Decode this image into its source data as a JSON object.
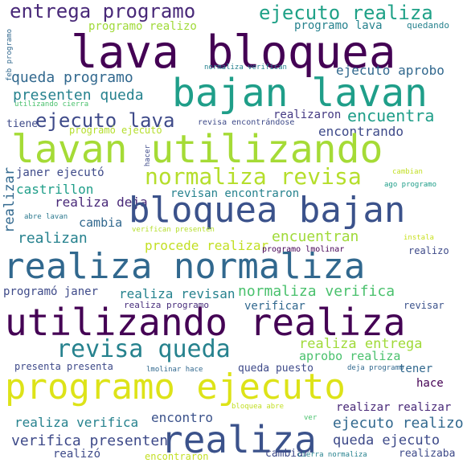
{
  "words": [
    {
      "text": "entrega programo",
      "color": "#482878",
      "vertical": false
    },
    {
      "text": "ejecuto realiza",
      "color": "#1fa187",
      "vertical": false
    },
    {
      "text": "programo realizo",
      "color": "#a0da39",
      "vertical": false
    },
    {
      "text": "programo lava",
      "color": "#26828e",
      "vertical": false
    },
    {
      "text": "quedando",
      "color": "#26828e",
      "vertical": false
    },
    {
      "text": "lava bloquea",
      "color": "#440154",
      "vertical": false
    },
    {
      "text": "feb programo",
      "color": "#31688e",
      "vertical": true
    },
    {
      "text": "queda programo",
      "color": "#31688e",
      "vertical": false
    },
    {
      "text": "normaliza verifican",
      "color": "#26828e",
      "vertical": false
    },
    {
      "text": "ejecuto aprobo",
      "color": "#31688e",
      "vertical": false
    },
    {
      "text": "bajan lavan",
      "color": "#1f9e89",
      "vertical": false
    },
    {
      "text": "presenten queda",
      "color": "#26828e",
      "vertical": false
    },
    {
      "text": "utilizando cierra",
      "color": "#4ac16d",
      "vertical": false
    },
    {
      "text": "realizaron",
      "color": "#443983",
      "vertical": false
    },
    {
      "text": "ejecuto lava",
      "color": "#3e4a89",
      "vertical": false
    },
    {
      "text": "encuentra",
      "color": "#1f9e89",
      "vertical": false
    },
    {
      "text": "tiene",
      "color": "#3e4a89",
      "vertical": false
    },
    {
      "text": "revisa encontrándose",
      "color": "#3e4a89",
      "vertical": false
    },
    {
      "text": "encontrando",
      "color": "#3e4a89",
      "vertical": false
    },
    {
      "text": "programó ejecutó",
      "color": "#b5de2b",
      "vertical": false
    },
    {
      "text": "lavan utilizando",
      "color": "#a5db36",
      "vertical": false
    },
    {
      "text": "hacer",
      "color": "#3e4a89",
      "vertical": true
    },
    {
      "text": "realizar",
      "color": "#31688e",
      "vertical": true
    },
    {
      "text": "janer ejecutó",
      "color": "#3e4a89",
      "vertical": false
    },
    {
      "text": "normaliza revisa",
      "color": "#b5de2b",
      "vertical": false
    },
    {
      "text": "cambian",
      "color": "#c2df23",
      "vertical": false
    },
    {
      "text": "castrillon",
      "color": "#1f9e89",
      "vertical": false
    },
    {
      "text": "revisan encontraron",
      "color": "#26828e",
      "vertical": false
    },
    {
      "text": "ago programo",
      "color": "#1f9e89",
      "vertical": false
    },
    {
      "text": "realiza deja",
      "color": "#482878",
      "vertical": false
    },
    {
      "text": "bloquea bajan",
      "color": "#3b528b",
      "vertical": false
    },
    {
      "text": "abre lavan",
      "color": "#2a788e",
      "vertical": false
    },
    {
      "text": "cambia",
      "color": "#31688e",
      "vertical": false
    },
    {
      "text": "realizan",
      "color": "#26828e",
      "vertical": false
    },
    {
      "text": "verifican presenten",
      "color": "#b5de2b",
      "vertical": false
    },
    {
      "text": "encuentran",
      "color": "#a0da39",
      "vertical": false
    },
    {
      "text": "instala",
      "color": "#c8e020",
      "vertical": false
    },
    {
      "text": "procede realizar",
      "color": "#c2df23",
      "vertical": false
    },
    {
      "text": "programo lmolinar",
      "color": "#440154",
      "vertical": false
    },
    {
      "text": "realizo",
      "color": "#3e4a89",
      "vertical": false
    },
    {
      "text": "realiza normaliza",
      "color": "#31688e",
      "vertical": false
    },
    {
      "text": "programó janer",
      "color": "#3e4a89",
      "vertical": false
    },
    {
      "text": "realiza revisan",
      "color": "#26828e",
      "vertical": false
    },
    {
      "text": "normaliza verifica",
      "color": "#4ac16d",
      "vertical": false
    },
    {
      "text": "realiza programo",
      "color": "#472d7b",
      "vertical": false
    },
    {
      "text": "verificar",
      "color": "#31688e",
      "vertical": false
    },
    {
      "text": "revisar",
      "color": "#3b528b",
      "vertical": false
    },
    {
      "text": "utilizando realiza",
      "color": "#440154",
      "vertical": false
    },
    {
      "text": "revisa queda",
      "color": "#26828e",
      "vertical": false
    },
    {
      "text": "realiza entrega",
      "color": "#a0da39",
      "vertical": false
    },
    {
      "text": "aprobo realiza",
      "color": "#4ac16d",
      "vertical": false
    },
    {
      "text": "presenta presenta",
      "color": "#3e4a89",
      "vertical": false
    },
    {
      "text": "lmolinar hace",
      "color": "#31688e",
      "vertical": false
    },
    {
      "text": "queda puesto",
      "color": "#3e4a89",
      "vertical": false
    },
    {
      "text": "deja programo",
      "color": "#31688e",
      "vertical": false
    },
    {
      "text": "tener",
      "color": "#31688e",
      "vertical": false
    },
    {
      "text": "hace",
      "color": "#440154",
      "vertical": false
    },
    {
      "text": "programo ejecuto",
      "color": "#dde318",
      "vertical": false
    },
    {
      "text": "bloquea abre",
      "color": "#c2df23",
      "vertical": false
    },
    {
      "text": "realizar realizar",
      "color": "#482878",
      "vertical": false
    },
    {
      "text": "realiza verifica",
      "color": "#26828e",
      "vertical": false
    },
    {
      "text": "encontro",
      "color": "#3b528b",
      "vertical": false
    },
    {
      "text": "ver",
      "color": "#4ac16d",
      "vertical": false
    },
    {
      "text": "ejecuto realizo",
      "color": "#31688e",
      "vertical": false
    },
    {
      "text": "verifica presenten",
      "color": "#3e4a89",
      "vertical": false
    },
    {
      "text": "realiza",
      "color": "#3b528b",
      "vertical": false
    },
    {
      "text": "queda ejecuto",
      "color": "#3e4a89",
      "vertical": false
    },
    {
      "text": "realizó",
      "color": "#3e4a89",
      "vertical": false
    },
    {
      "text": "encontraron",
      "color": "#c2df23",
      "vertical": false
    },
    {
      "text": "cambiar",
      "color": "#3e4a89",
      "vertical": false
    },
    {
      "text": "cierra normaliza",
      "color": "#26828e",
      "vertical": false
    },
    {
      "text": "realizaba",
      "color": "#3e4a89",
      "vertical": false
    }
  ]
}
